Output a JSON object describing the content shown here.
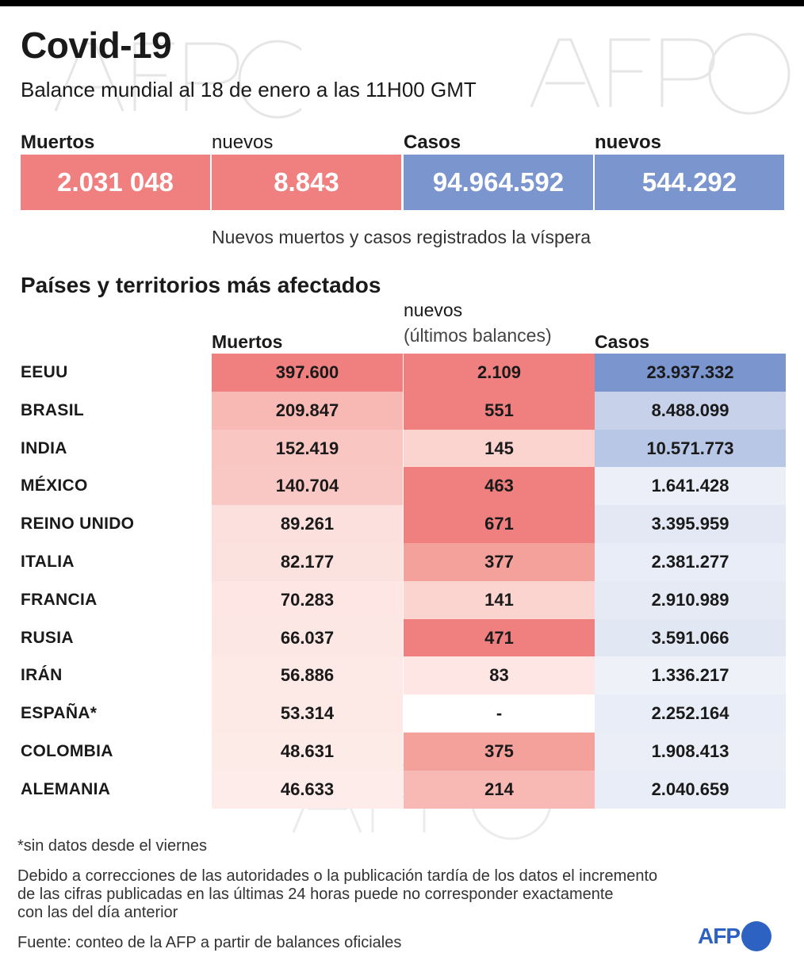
{
  "header": {
    "title": "Covid-19",
    "subtitle": "Balance mundial al 18 de enero a las 11H00 GMT"
  },
  "summary": {
    "labels": [
      "Muertos",
      "nuevos",
      "Casos",
      "nuevos"
    ],
    "values": [
      "2.031 048",
      "8.843",
      "94.964.592",
      "544.292"
    ],
    "colors": [
      "#f08080",
      "#f08080",
      "#7b96cf",
      "#7b96cf"
    ],
    "note": "Nuevos muertos y casos registrados la víspera"
  },
  "section": {
    "title": "Países y territorios más afectados",
    "col_deaths": "Muertos",
    "col_new_line1": "nuevos",
    "col_new_line2": "(últimos balances)",
    "col_cases": "Casos"
  },
  "chart_data": {
    "type": "table",
    "title": "Países y territorios más afectados",
    "columns": [
      "Muertos",
      "nuevos (últimos balances)",
      "Casos"
    ],
    "rows": [
      {
        "country": "EEUU",
        "deaths": "397.600",
        "new": "2.109",
        "cases": "23.937.332"
      },
      {
        "country": "BRASIL",
        "deaths": "209.847",
        "new": "551",
        "cases": "8.488.099"
      },
      {
        "country": "INDIA",
        "deaths": "152.419",
        "new": "145",
        "cases": "10.571.773"
      },
      {
        "country": "MÉXICO",
        "deaths": "140.704",
        "new": "463",
        "cases": "1.641.428"
      },
      {
        "country": "REINO UNIDO",
        "deaths": "89.261",
        "new": "671",
        "cases": "3.395.959"
      },
      {
        "country": "ITALIA",
        "deaths": "82.177",
        "new": "377",
        "cases": "2.381.277"
      },
      {
        "country": "FRANCIA",
        "deaths": "70.283",
        "new": "141",
        "cases": "2.910.989"
      },
      {
        "country": "RUSIA",
        "deaths": "66.037",
        "new": "471",
        "cases": "3.591.066"
      },
      {
        "country": "IRÁN",
        "deaths": "56.886",
        "new": "83",
        "cases": "1.336.217"
      },
      {
        "country": "ESPAÑA*",
        "deaths": "53.314",
        "new": "-",
        "cases": "2.252.164"
      },
      {
        "country": "COLOMBIA",
        "deaths": "48.631",
        "new": "375",
        "cases": "1.908.413"
      },
      {
        "country": "ALEMANIA",
        "deaths": "46.633",
        "new": "214",
        "cases": "2.040.659"
      }
    ],
    "cell_colors": {
      "deaths": [
        "#f08080",
        "#f8b8b4",
        "#f9c6c2",
        "#f9c8c4",
        "#fce0dd",
        "#fce2df",
        "#fde6e3",
        "#fde7e4",
        "#fde9e6",
        "#fdeae7",
        "#fdebe8",
        "#fdece9"
      ],
      "new": [
        "#f08080",
        "#f08080",
        "#fbd3cf",
        "#f08080",
        "#f08080",
        "#f5a19b",
        "#fbd4d0",
        "#f08080",
        "#fde6e3",
        "#ffffff",
        "#f5a19b",
        "#f8b8b4"
      ],
      "cases": [
        "#7b96cf",
        "#c7d1ea",
        "#b9c7e6",
        "#eceff8",
        "#e3e8f4",
        "#e9edf7",
        "#e6eaf5",
        "#e2e7f4",
        "#eef1f8",
        "#e9edf7",
        "#ebeef7",
        "#e9edf7"
      ]
    }
  },
  "footer": {
    "footnote": "*sin datos desde el viernes",
    "disclaimer_1": "Debido a correcciones de las autoridades o la publicación tardía de los datos  el incremento",
    "disclaimer_2": "de las cifras publicadas en las últimas 24 horas puede no corresponder exactamente",
    "disclaimer_3": "con las del día anterior",
    "source": "Fuente: conteo de la AFP a partir de balances oficiales",
    "logo_text": "AFP"
  }
}
